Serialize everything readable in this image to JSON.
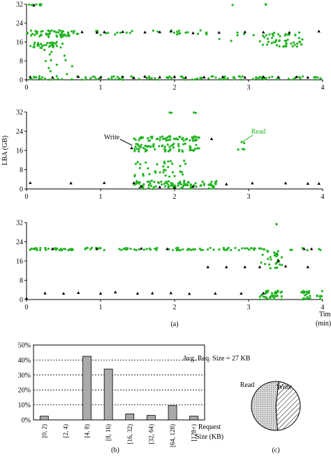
{
  "colors": {
    "read": "#22b422",
    "write": "#000000",
    "bar": "#aaaaaa",
    "grid": "#000000"
  },
  "chart_data": [
    {
      "type": "scatter",
      "panel": "top",
      "xlim": [
        0,
        4
      ],
      "ylim": [
        0,
        32
      ],
      "xticks": [
        "0",
        "1",
        "2",
        "3",
        "4"
      ],
      "yticks": [
        "0",
        "8",
        "16",
        "24",
        "32"
      ],
      "series": [
        {
          "kind": "read",
          "bands": [
            {
              "x0": 0.0,
              "x1": 0.7,
              "y0": 18.0,
              "y1": 21.0,
              "n": 55
            },
            {
              "x0": 0.05,
              "x1": 0.5,
              "y0": 13.5,
              "y1": 16.0,
              "n": 30
            },
            {
              "x0": 0.2,
              "x1": 0.65,
              "y0": 2.0,
              "y1": 14.0,
              "n": 14
            },
            {
              "x0": 0.0,
              "x1": 4.0,
              "y0": 0.0,
              "y1": 1.5,
              "n": 110
            },
            {
              "x0": 0.7,
              "x1": 2.5,
              "y0": 19.0,
              "y1": 21.0,
              "n": 28
            },
            {
              "x0": 3.15,
              "x1": 3.75,
              "y0": 14.0,
              "y1": 20.0,
              "n": 50
            },
            {
              "x0": 2.6,
              "x1": 3.1,
              "y0": 16.0,
              "y1": 20.0,
              "n": 6
            },
            {
              "x0": 0.0,
              "x1": 0.2,
              "y0": 31.5,
              "y1": 32.0,
              "n": 10
            },
            {
              "x0": 2.6,
              "x1": 3.5,
              "y0": 31.5,
              "y1": 32.0,
              "n": 3
            }
          ]
        },
        {
          "kind": "write",
          "points": [
            [
              0.1,
              31.5
            ],
            [
              0.75,
              20.2
            ],
            [
              0.95,
              20.0
            ],
            [
              1.05,
              20.2
            ],
            [
              1.3,
              20.3
            ],
            [
              1.6,
              20.1
            ],
            [
              1.8,
              20.2
            ],
            [
              1.95,
              20.5
            ],
            [
              2.25,
              19.8
            ],
            [
              2.6,
              20.0
            ],
            [
              2.95,
              20.2
            ],
            [
              3.2,
              20.1
            ],
            [
              3.55,
              20.0
            ],
            [
              3.95,
              20.5
            ],
            [
              0.05,
              1.2
            ],
            [
              0.35,
              1.0
            ],
            [
              0.7,
              1.3
            ],
            [
              1.0,
              1.0
            ],
            [
              1.3,
              1.2
            ],
            [
              1.45,
              0.8
            ],
            [
              1.6,
              1.3
            ],
            [
              1.8,
              1.1
            ],
            [
              2.0,
              1.3
            ],
            [
              2.15,
              1.0
            ],
            [
              2.4,
              1.1
            ],
            [
              2.65,
              1.2
            ],
            [
              2.95,
              1.0
            ],
            [
              3.2,
              1.2
            ],
            [
              3.4,
              1.1
            ],
            [
              3.65,
              1.2
            ],
            [
              3.8,
              1.0
            ]
          ]
        }
      ]
    },
    {
      "type": "scatter",
      "panel": "middle",
      "ylabel": "LBA (GB)",
      "xlim": [
        0,
        4
      ],
      "ylim": [
        0,
        32
      ],
      "xticks": [
        "0",
        "1",
        "2",
        "3",
        "4"
      ],
      "yticks": [
        "0",
        "8",
        "16",
        "24",
        "32"
      ],
      "annotations": [
        {
          "text": "Write",
          "at": [
            1.38,
            18.5
          ]
        },
        {
          "text": "Read",
          "at": [
            2.95,
            20.5
          ]
        }
      ],
      "series": [
        {
          "kind": "read",
          "bands": [
            {
              "x0": 1.45,
              "x1": 2.35,
              "y0": 20.0,
              "y1": 22.0,
              "n": 55
            },
            {
              "x0": 1.45,
              "x1": 2.35,
              "y0": 15.5,
              "y1": 19.0,
              "n": 65
            },
            {
              "x0": 1.45,
              "x1": 2.15,
              "y0": 5.0,
              "y1": 12.0,
              "n": 35
            },
            {
              "x0": 1.45,
              "x1": 2.6,
              "y0": 0.0,
              "y1": 3.5,
              "n": 100
            },
            {
              "x0": 2.85,
              "x1": 2.95,
              "y0": 15.0,
              "y1": 20.0,
              "n": 5
            },
            {
              "x0": 1.9,
              "x1": 2.3,
              "y0": 31.5,
              "y1": 32.0,
              "n": 4
            }
          ]
        },
        {
          "kind": "write",
          "points": [
            [
              0.05,
              2.5
            ],
            [
              0.6,
              2.4
            ],
            [
              1.05,
              2.5
            ],
            [
              1.45,
              2.5
            ],
            [
              1.55,
              1.0
            ],
            [
              1.8,
              0.8
            ],
            [
              2.0,
              0.5
            ],
            [
              2.25,
              1.0
            ],
            [
              2.5,
              20.8
            ],
            [
              2.7,
              2.0
            ],
            [
              3.05,
              2.4
            ],
            [
              3.5,
              2.4
            ],
            [
              3.8,
              2.2
            ],
            [
              3.95,
              2.2
            ],
            [
              1.42,
              17.0
            ]
          ]
        }
      ]
    },
    {
      "type": "scatter",
      "panel": "bottom",
      "xlim": [
        0,
        4
      ],
      "ylim": [
        0,
        32
      ],
      "xticks": [
        "0",
        "1",
        "2",
        "3",
        "4"
      ],
      "yticks": [
        "0",
        "8",
        "16",
        "24",
        "32"
      ],
      "xlabel": "Time (min)",
      "series": [
        {
          "kind": "read",
          "bands": [
            {
              "x0": 0.0,
              "x1": 3.25,
              "y0": 20.5,
              "y1": 21.5,
              "n": 110
            },
            {
              "x0": 3.15,
              "x1": 3.45,
              "y0": 13.0,
              "y1": 21.0,
              "n": 30
            },
            {
              "x0": 3.15,
              "x1": 3.45,
              "y0": 0.0,
              "y1": 4.0,
              "n": 40
            },
            {
              "x0": 3.7,
              "x1": 4.0,
              "y0": 0.0,
              "y1": 4.0,
              "n": 30
            },
            {
              "x0": 3.35,
              "x1": 3.4,
              "y0": 31.0,
              "y1": 32.0,
              "n": 2
            },
            {
              "x0": 3.5,
              "x1": 4.0,
              "y0": 20.5,
              "y1": 21.5,
              "n": 6
            }
          ]
        },
        {
          "kind": "write",
          "points": [
            [
              0.0,
              0.5
            ],
            [
              0.25,
              2.6
            ],
            [
              0.5,
              2.5
            ],
            [
              0.7,
              2.8
            ],
            [
              1.0,
              2.5
            ],
            [
              1.2,
              3.0
            ],
            [
              1.5,
              2.5
            ],
            [
              1.7,
              2.6
            ],
            [
              1.95,
              2.7
            ],
            [
              2.2,
              2.4
            ],
            [
              2.55,
              2.5
            ],
            [
              2.9,
              2.5
            ],
            [
              3.2,
              2.6
            ],
            [
              0.35,
              21.0
            ],
            [
              0.95,
              21.0
            ],
            [
              1.55,
              21.2
            ],
            [
              1.9,
              21.0
            ],
            [
              2.45,
              13.5
            ],
            [
              2.7,
              13.5
            ],
            [
              2.95,
              13.5
            ],
            [
              3.15,
              13.5
            ],
            [
              3.4,
              16.0
            ],
            [
              3.5,
              13.8
            ],
            [
              3.75,
              21.0
            ],
            [
              3.85,
              21.0
            ],
            [
              3.8,
              13.5
            ]
          ]
        }
      ]
    },
    {
      "type": "bar",
      "panel": "b",
      "categories": [
        "[0, 2)",
        "[2, 4)",
        "[4, 8)",
        "[8, 16)",
        "[16, 32)",
        "[32, 64)",
        "[64, 128)",
        "[128+)"
      ],
      "values": [
        2.5,
        0,
        42.5,
        34,
        4,
        3,
        9.5,
        2.5
      ],
      "ylim": [
        0,
        50
      ],
      "yticks": [
        "0%",
        "10%",
        "20%",
        "30%",
        "40%",
        "50%"
      ],
      "xlabel": "Request Size (KB)",
      "annotation": "Avg. Req. Size = 27 KB",
      "grid": true
    },
    {
      "type": "pie",
      "panel": "c",
      "slices": [
        {
          "label": "Read",
          "value": 53
        },
        {
          "label": "Write",
          "value": 47
        }
      ]
    }
  ],
  "captions": [
    "(a)",
    "(b)",
    "(c)"
  ],
  "bottom_x_label": [
    "Time",
    "(min)"
  ],
  "bar_x_label": [
    "Request",
    "Size (KB)"
  ]
}
